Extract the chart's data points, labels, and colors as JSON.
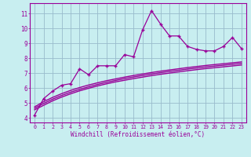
{
  "x_data": [
    0,
    1,
    2,
    3,
    4,
    5,
    6,
    7,
    8,
    9,
    10,
    11,
    12,
    13,
    14,
    15,
    16,
    17,
    18,
    19,
    20,
    21,
    22,
    23
  ],
  "y_scatter": [
    4.2,
    5.3,
    5.8,
    6.2,
    6.3,
    7.3,
    6.9,
    7.5,
    7.5,
    7.5,
    8.25,
    8.1,
    9.9,
    11.2,
    10.3,
    9.5,
    9.5,
    8.8,
    8.6,
    8.5,
    8.5,
    8.8,
    9.4,
    8.65
  ],
  "y_line1": [
    4.55,
    4.85,
    5.15,
    5.4,
    5.62,
    5.82,
    5.99,
    6.15,
    6.29,
    6.42,
    6.53,
    6.64,
    6.74,
    6.84,
    6.93,
    7.01,
    7.09,
    7.17,
    7.24,
    7.31,
    7.37,
    7.43,
    7.49,
    7.55
  ],
  "y_line2": [
    4.65,
    4.97,
    5.26,
    5.51,
    5.73,
    5.92,
    6.09,
    6.25,
    6.39,
    6.52,
    6.64,
    6.75,
    6.85,
    6.95,
    7.04,
    7.12,
    7.2,
    7.28,
    7.35,
    7.42,
    7.48,
    7.54,
    7.6,
    7.66
  ],
  "y_line3": [
    4.75,
    5.09,
    5.38,
    5.63,
    5.85,
    6.04,
    6.21,
    6.36,
    6.5,
    6.62,
    6.74,
    6.85,
    6.95,
    7.05,
    7.14,
    7.22,
    7.3,
    7.38,
    7.45,
    7.52,
    7.58,
    7.64,
    7.7,
    7.76
  ],
  "line_color": "#990099",
  "scatter_color": "#990099",
  "bg_color": "#c8eef0",
  "grid_color": "#99bbcc",
  "xlabel": "Windchill (Refroidissement éolien,°C)",
  "ylabel_ticks": [
    4,
    5,
    6,
    7,
    8,
    9,
    10,
    11
  ],
  "xlim": [
    -0.5,
    23.5
  ],
  "ylim": [
    3.7,
    11.7
  ],
  "xtick_labels": [
    "0",
    "1",
    "2",
    "3",
    "4",
    "5",
    "6",
    "7",
    "8",
    "9",
    "10",
    "11",
    "12",
    "13",
    "14",
    "15",
    "16",
    "17",
    "18",
    "19",
    "20",
    "21",
    "22",
    "23"
  ]
}
